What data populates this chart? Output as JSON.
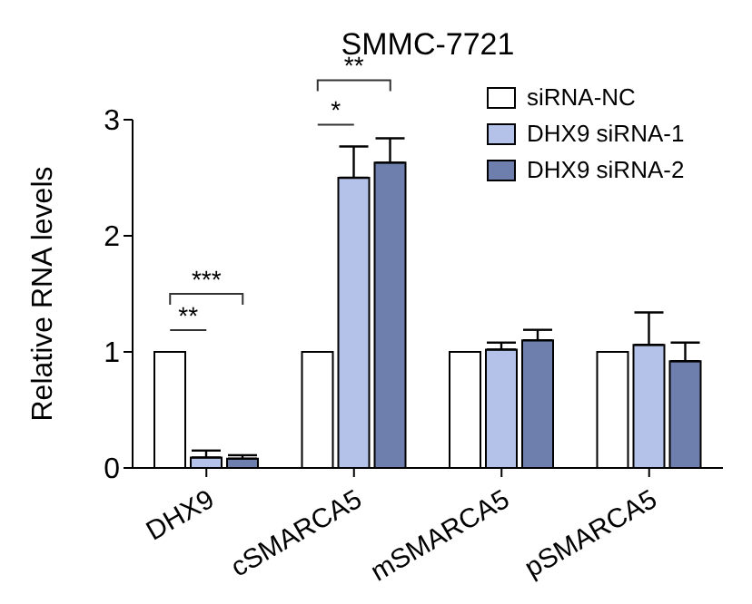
{
  "chart_data": {
    "type": "bar",
    "title": "SMMC-7721",
    "ylabel": "Relative RNA levels",
    "categories": [
      "DHX9",
      "cSMARCA5",
      "mSMARCA5",
      "pSMARCA5"
    ],
    "series": [
      {
        "name": "siRNA-NC",
        "color": "#ffffff",
        "values": [
          1,
          1,
          1,
          1
        ]
      },
      {
        "name": "DHX9 siRNA-1",
        "color": "#b4c2ea",
        "values": [
          0.09,
          2.5,
          1.02,
          1.06
        ],
        "errors": [
          0.06,
          0.27,
          0.06,
          0.28
        ]
      },
      {
        "name": "DHX9 siRNA-2",
        "color": "#6e7fae",
        "values": [
          0.08,
          2.63,
          1.1,
          0.92
        ],
        "errors": [
          0.03,
          0.21,
          0.09,
          0.16
        ]
      }
    ],
    "ylim": [
      0,
      3
    ],
    "yticks": [
      0,
      1,
      2,
      3
    ],
    "legend": "top right",
    "annotations": [
      "**",
      "***",
      "*",
      "**"
    ]
  }
}
